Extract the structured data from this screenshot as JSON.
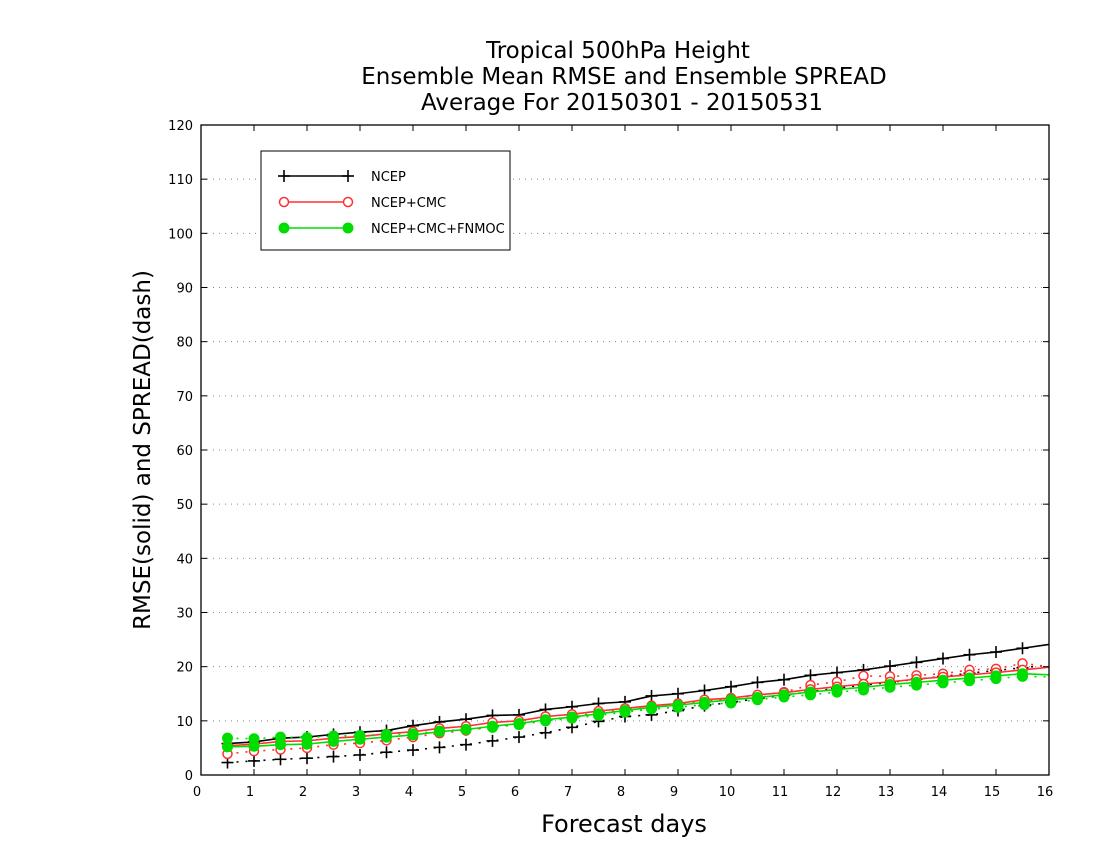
{
  "chart_data": {
    "type": "line",
    "title_lines": [
      "Tropical 500hPa Height",
      "Ensemble Mean RMSE and Ensemble SPREAD",
      "Average For 20150301 - 20150531"
    ],
    "xlabel": "Forecast days",
    "ylabel": "RMSE(solid) and SPREAD(dash)",
    "xlim": [
      0,
      16
    ],
    "ylim": [
      0,
      120
    ],
    "xticks": [
      0,
      1,
      2,
      3,
      4,
      5,
      6,
      7,
      8,
      9,
      10,
      11,
      12,
      13,
      14,
      15,
      16
    ],
    "yticks": [
      0,
      10,
      20,
      30,
      40,
      50,
      60,
      70,
      80,
      90,
      100,
      110,
      120
    ],
    "grid": "horizontal dotted",
    "legend_position": "top-left",
    "x": [
      0.5,
      1,
      1.5,
      2,
      2.5,
      3,
      3.5,
      4,
      4.5,
      5,
      5.5,
      6,
      6.5,
      7,
      7.5,
      8,
      8.5,
      9,
      9.5,
      10,
      10.5,
      11,
      11.5,
      12,
      12.5,
      13,
      13.5,
      14,
      14.5,
      15,
      15.5,
      16
    ],
    "series": [
      {
        "name": "NCEP",
        "color": "#000000",
        "marker": "plus",
        "rmse": [
          5.8,
          6.1,
          6.8,
          7.0,
          7.5,
          7.9,
          8.2,
          9.1,
          9.8,
          10.3,
          11.0,
          11.1,
          12.1,
          12.6,
          13.2,
          13.5,
          14.6,
          15.0,
          15.6,
          16.3,
          17.1,
          17.6,
          18.4,
          18.9,
          19.4,
          20.1,
          20.8,
          21.5,
          22.2,
          22.7,
          23.4,
          24.1
        ],
        "spread": [
          2.3,
          2.6,
          2.9,
          3.1,
          3.4,
          3.7,
          4.2,
          4.6,
          5.1,
          5.6,
          6.3,
          7.0,
          7.8,
          8.8,
          9.9,
          10.8,
          11.1,
          11.9,
          12.8,
          13.4,
          14.1,
          14.7,
          15.4,
          16.0,
          16.6,
          17.1,
          17.7,
          18.2,
          18.8,
          19.3,
          19.8,
          20.3
        ]
      },
      {
        "name": "NCEP+CMC",
        "color": "#ff3030",
        "marker": "open-circle",
        "rmse": [
          5.4,
          5.7,
          6.2,
          6.3,
          6.8,
          7.1,
          7.6,
          8.0,
          8.6,
          9.0,
          9.7,
          10.0,
          10.8,
          11.2,
          11.8,
          12.3,
          12.8,
          13.2,
          13.9,
          14.2,
          14.8,
          15.2,
          15.8,
          16.3,
          16.8,
          17.2,
          17.7,
          18.1,
          18.5,
          18.9,
          19.4,
          19.9
        ],
        "spread": [
          3.9,
          4.4,
          4.7,
          5.0,
          5.6,
          5.9,
          6.4,
          7.0,
          7.7,
          8.2,
          8.9,
          9.5,
          10.1,
          10.8,
          11.5,
          12.0,
          12.5,
          13.0,
          13.6,
          14.2,
          14.7,
          15.3,
          16.6,
          17.2,
          18.3,
          18.2,
          18.4,
          18.7,
          19.4,
          19.6,
          20.6,
          20.0
        ]
      },
      {
        "name": "NCEP+CMC+FNMOC",
        "color": "#00dd00",
        "marker": "filled-circle",
        "rmse": [
          5.2,
          5.3,
          5.6,
          5.7,
          6.2,
          6.6,
          7.0,
          7.4,
          8.0,
          8.4,
          9.0,
          9.5,
          10.2,
          10.7,
          11.3,
          11.9,
          12.5,
          12.9,
          13.4,
          13.9,
          14.3,
          14.8,
          15.3,
          15.8,
          16.2,
          16.7,
          17.1,
          17.5,
          17.9,
          18.3,
          18.7,
          18.5
        ],
        "spread": [
          6.8,
          6.7,
          7.0,
          6.9,
          7.2,
          7.3,
          7.5,
          7.6,
          8.1,
          8.4,
          8.8,
          9.3,
          10.0,
          10.5,
          11.0,
          11.6,
          12.2,
          12.5,
          13.0,
          13.3,
          13.9,
          14.4,
          14.8,
          15.3,
          15.7,
          16.2,
          16.6,
          17.0,
          17.4,
          17.8,
          18.2,
          18.1
        ]
      }
    ]
  }
}
